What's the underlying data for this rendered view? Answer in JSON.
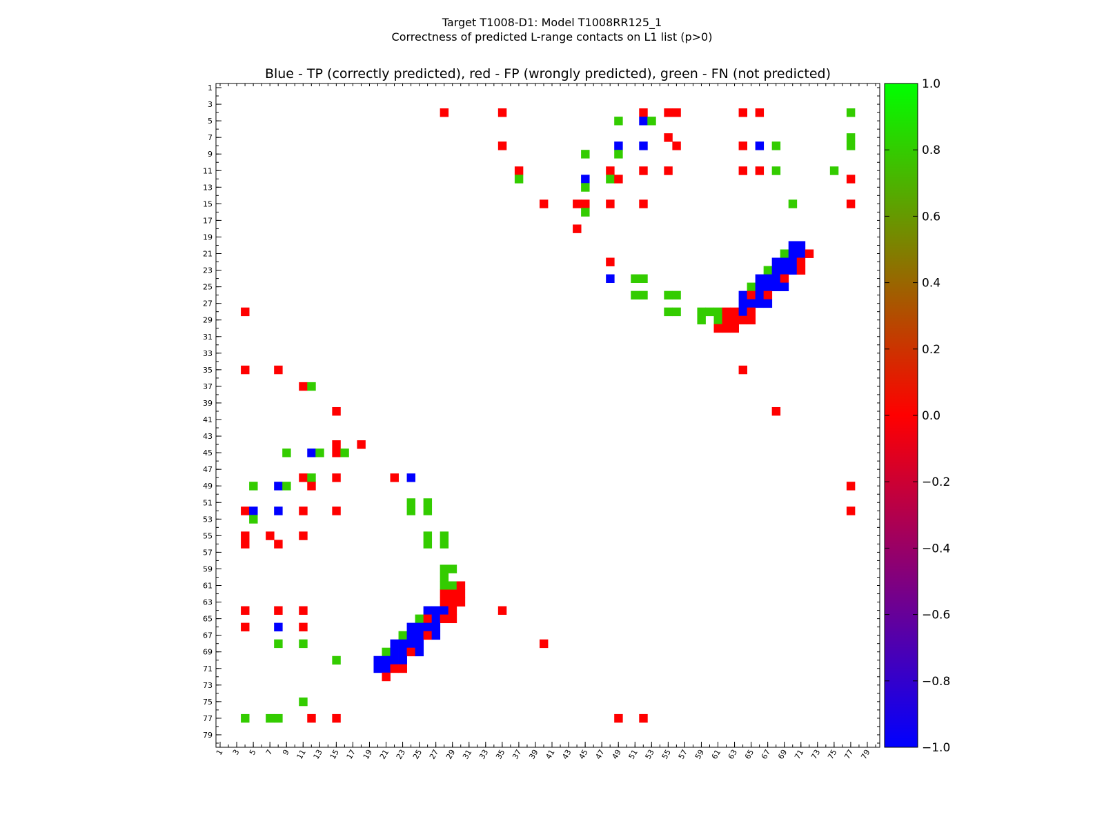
{
  "chart_data": {
    "type": "heatmap",
    "title_line1": "Target T1008-D1: Model T1008RR125_1",
    "title_line2": "Correctness of predicted L-range contacts on L1 list (p>0)",
    "subtitle": "Blue - TP (correctly predicted), red - FP (wrongly predicted), green - FN (not predicted)",
    "xlabel": "",
    "ylabel": "",
    "xlim": [
      1,
      80
    ],
    "ylim": [
      1,
      80
    ],
    "tick_labels": [
      "1",
      "3",
      "5",
      "7",
      "9",
      "11",
      "13",
      "15",
      "17",
      "19",
      "21",
      "23",
      "25",
      "27",
      "29",
      "31",
      "33",
      "35",
      "37",
      "39",
      "41",
      "43",
      "45",
      "47",
      "49",
      "51",
      "53",
      "55",
      "57",
      "59",
      "61",
      "63",
      "65",
      "67",
      "69",
      "71",
      "73",
      "75",
      "77",
      "79"
    ],
    "colorbar": {
      "range": [
        -1.0,
        1.0
      ],
      "ticks": [
        "1.0",
        "0.8",
        "0.6",
        "0.4",
        "0.2",
        "0.0",
        "−0.2",
        "−0.4",
        "−0.6",
        "−0.8",
        "−1.0"
      ],
      "tick_values": [
        1.0,
        0.8,
        0.6,
        0.4,
        0.2,
        0.0,
        -0.2,
        -0.4,
        -0.6,
        -0.8,
        -1.0
      ]
    },
    "value_meaning": {
      "TP": -1.0,
      "FP": 0.0,
      "FN": 1.0
    },
    "colors": {
      "TP": "#0000ff",
      "FP": "#ff0000",
      "FN": "#33cc00"
    },
    "cells": [
      {
        "i": 4,
        "j": 28,
        "t": "FP"
      },
      {
        "i": 4,
        "j": 35,
        "t": "FP"
      },
      {
        "i": 4,
        "j": 52,
        "t": "FP"
      },
      {
        "i": 4,
        "j": 55,
        "t": "FP"
      },
      {
        "i": 4,
        "j": 56,
        "t": "FP"
      },
      {
        "i": 4,
        "j": 64,
        "t": "FP"
      },
      {
        "i": 4,
        "j": 66,
        "t": "FP"
      },
      {
        "i": 4,
        "j": 77,
        "t": "FN"
      },
      {
        "i": 5,
        "j": 49,
        "t": "FN"
      },
      {
        "i": 5,
        "j": 52,
        "t": "TP"
      },
      {
        "i": 5,
        "j": 53,
        "t": "FN"
      },
      {
        "i": 7,
        "j": 55,
        "t": "FP"
      },
      {
        "i": 7,
        "j": 77,
        "t": "FN"
      },
      {
        "i": 8,
        "j": 35,
        "t": "FP"
      },
      {
        "i": 8,
        "j": 49,
        "t": "TP"
      },
      {
        "i": 8,
        "j": 52,
        "t": "TP"
      },
      {
        "i": 8,
        "j": 56,
        "t": "FP"
      },
      {
        "i": 8,
        "j": 64,
        "t": "FP"
      },
      {
        "i": 8,
        "j": 66,
        "t": "TP"
      },
      {
        "i": 8,
        "j": 68,
        "t": "FN"
      },
      {
        "i": 8,
        "j": 77,
        "t": "FN"
      },
      {
        "i": 9,
        "j": 45,
        "t": "FN"
      },
      {
        "i": 9,
        "j": 49,
        "t": "FN"
      },
      {
        "i": 11,
        "j": 37,
        "t": "FP"
      },
      {
        "i": 11,
        "j": 48,
        "t": "FP"
      },
      {
        "i": 11,
        "j": 52,
        "t": "FP"
      },
      {
        "i": 11,
        "j": 55,
        "t": "FP"
      },
      {
        "i": 11,
        "j": 64,
        "t": "FP"
      },
      {
        "i": 11,
        "j": 66,
        "t": "FP"
      },
      {
        "i": 11,
        "j": 68,
        "t": "FN"
      },
      {
        "i": 11,
        "j": 75,
        "t": "FN"
      },
      {
        "i": 12,
        "j": 37,
        "t": "FN"
      },
      {
        "i": 12,
        "j": 45,
        "t": "TP"
      },
      {
        "i": 12,
        "j": 48,
        "t": "FN"
      },
      {
        "i": 12,
        "j": 49,
        "t": "FP"
      },
      {
        "i": 12,
        "j": 77,
        "t": "FP"
      },
      {
        "i": 13,
        "j": 45,
        "t": "FN"
      },
      {
        "i": 15,
        "j": 40,
        "t": "FP"
      },
      {
        "i": 15,
        "j": 44,
        "t": "FP"
      },
      {
        "i": 15,
        "j": 45,
        "t": "FP"
      },
      {
        "i": 15,
        "j": 48,
        "t": "FP"
      },
      {
        "i": 15,
        "j": 52,
        "t": "FP"
      },
      {
        "i": 15,
        "j": 70,
        "t": "FN"
      },
      {
        "i": 15,
        "j": 77,
        "t": "FP"
      },
      {
        "i": 16,
        "j": 45,
        "t": "FN"
      },
      {
        "i": 18,
        "j": 44,
        "t": "FP"
      },
      {
        "i": 20,
        "j": 70,
        "t": "TP"
      },
      {
        "i": 20,
        "j": 71,
        "t": "TP"
      },
      {
        "i": 21,
        "j": 69,
        "t": "FN"
      },
      {
        "i": 21,
        "j": 70,
        "t": "TP"
      },
      {
        "i": 21,
        "j": 71,
        "t": "TP"
      },
      {
        "i": 21,
        "j": 72,
        "t": "FP"
      },
      {
        "i": 22,
        "j": 48,
        "t": "FP"
      },
      {
        "i": 22,
        "j": 68,
        "t": "TP"
      },
      {
        "i": 22,
        "j": 69,
        "t": "TP"
      },
      {
        "i": 22,
        "j": 70,
        "t": "TP"
      },
      {
        "i": 22,
        "j": 71,
        "t": "FP"
      },
      {
        "i": 23,
        "j": 67,
        "t": "FN"
      },
      {
        "i": 23,
        "j": 68,
        "t": "TP"
      },
      {
        "i": 23,
        "j": 69,
        "t": "TP"
      },
      {
        "i": 23,
        "j": 70,
        "t": "TP"
      },
      {
        "i": 23,
        "j": 71,
        "t": "FP"
      },
      {
        "i": 24,
        "j": 48,
        "t": "TP"
      },
      {
        "i": 24,
        "j": 51,
        "t": "FN"
      },
      {
        "i": 24,
        "j": 52,
        "t": "FN"
      },
      {
        "i": 24,
        "j": 66,
        "t": "TP"
      },
      {
        "i": 24,
        "j": 67,
        "t": "TP"
      },
      {
        "i": 24,
        "j": 68,
        "t": "TP"
      },
      {
        "i": 24,
        "j": 69,
        "t": "FP"
      },
      {
        "i": 25,
        "j": 65,
        "t": "FN"
      },
      {
        "i": 25,
        "j": 66,
        "t": "TP"
      },
      {
        "i": 25,
        "j": 67,
        "t": "TP"
      },
      {
        "i": 25,
        "j": 68,
        "t": "TP"
      },
      {
        "i": 25,
        "j": 69,
        "t": "TP"
      },
      {
        "i": 26,
        "j": 51,
        "t": "FN"
      },
      {
        "i": 26,
        "j": 52,
        "t": "FN"
      },
      {
        "i": 26,
        "j": 55,
        "t": "FN"
      },
      {
        "i": 26,
        "j": 56,
        "t": "FN"
      },
      {
        "i": 26,
        "j": 64,
        "t": "TP"
      },
      {
        "i": 26,
        "j": 65,
        "t": "FP"
      },
      {
        "i": 26,
        "j": 66,
        "t": "TP"
      },
      {
        "i": 26,
        "j": 67,
        "t": "FP"
      },
      {
        "i": 27,
        "j": 64,
        "t": "TP"
      },
      {
        "i": 27,
        "j": 65,
        "t": "TP"
      },
      {
        "i": 27,
        "j": 66,
        "t": "TP"
      },
      {
        "i": 27,
        "j": 67,
        "t": "TP"
      },
      {
        "i": 28,
        "j": 4,
        "t": "FP"
      },
      {
        "i": 28,
        "j": 55,
        "t": "FN"
      },
      {
        "i": 28,
        "j": 56,
        "t": "FN"
      },
      {
        "i": 28,
        "j": 59,
        "t": "FN"
      },
      {
        "i": 28,
        "j": 60,
        "t": "FN"
      },
      {
        "i": 28,
        "j": 61,
        "t": "FN"
      },
      {
        "i": 28,
        "j": 62,
        "t": "FP"
      },
      {
        "i": 28,
        "j": 63,
        "t": "FP"
      },
      {
        "i": 28,
        "j": 64,
        "t": "TP"
      },
      {
        "i": 28,
        "j": 65,
        "t": "FP"
      },
      {
        "i": 29,
        "j": 59,
        "t": "FN"
      },
      {
        "i": 29,
        "j": 61,
        "t": "FN"
      },
      {
        "i": 29,
        "j": 62,
        "t": "FP"
      },
      {
        "i": 29,
        "j": 63,
        "t": "FP"
      },
      {
        "i": 29,
        "j": 64,
        "t": "FP"
      },
      {
        "i": 29,
        "j": 65,
        "t": "FP"
      },
      {
        "i": 30,
        "j": 61,
        "t": "FP"
      },
      {
        "i": 30,
        "j": 62,
        "t": "FP"
      },
      {
        "i": 30,
        "j": 63,
        "t": "FP"
      },
      {
        "i": 35,
        "j": 4,
        "t": "FP"
      },
      {
        "i": 35,
        "j": 8,
        "t": "FP"
      },
      {
        "i": 35,
        "j": 64,
        "t": "FP"
      },
      {
        "i": 37,
        "j": 11,
        "t": "FP"
      },
      {
        "i": 37,
        "j": 12,
        "t": "FN"
      },
      {
        "i": 40,
        "j": 15,
        "t": "FP"
      },
      {
        "i": 40,
        "j": 68,
        "t": "FP"
      },
      {
        "i": 44,
        "j": 15,
        "t": "FP"
      },
      {
        "i": 44,
        "j": 18,
        "t": "FP"
      },
      {
        "i": 45,
        "j": 9,
        "t": "FN"
      },
      {
        "i": 45,
        "j": 12,
        "t": "TP"
      },
      {
        "i": 45,
        "j": 13,
        "t": "FN"
      },
      {
        "i": 45,
        "j": 15,
        "t": "FP"
      },
      {
        "i": 45,
        "j": 16,
        "t": "FN"
      },
      {
        "i": 48,
        "j": 11,
        "t": "FP"
      },
      {
        "i": 48,
        "j": 12,
        "t": "FN"
      },
      {
        "i": 48,
        "j": 15,
        "t": "FP"
      },
      {
        "i": 48,
        "j": 22,
        "t": "FP"
      },
      {
        "i": 48,
        "j": 24,
        "t": "TP"
      },
      {
        "i": 49,
        "j": 5,
        "t": "FN"
      },
      {
        "i": 49,
        "j": 8,
        "t": "TP"
      },
      {
        "i": 49,
        "j": 9,
        "t": "FN"
      },
      {
        "i": 49,
        "j": 12,
        "t": "FP"
      },
      {
        "i": 49,
        "j": 77,
        "t": "FP"
      },
      {
        "i": 51,
        "j": 24,
        "t": "FN"
      },
      {
        "i": 51,
        "j": 26,
        "t": "FN"
      },
      {
        "i": 52,
        "j": 4,
        "t": "FP"
      },
      {
        "i": 52,
        "j": 5,
        "t": "TP"
      },
      {
        "i": 52,
        "j": 8,
        "t": "TP"
      },
      {
        "i": 52,
        "j": 11,
        "t": "FP"
      },
      {
        "i": 52,
        "j": 15,
        "t": "FP"
      },
      {
        "i": 52,
        "j": 24,
        "t": "FN"
      },
      {
        "i": 52,
        "j": 26,
        "t": "FN"
      },
      {
        "i": 52,
        "j": 77,
        "t": "FP"
      },
      {
        "i": 53,
        "j": 5,
        "t": "FN"
      },
      {
        "i": 55,
        "j": 4,
        "t": "FP"
      },
      {
        "i": 55,
        "j": 7,
        "t": "FP"
      },
      {
        "i": 55,
        "j": 11,
        "t": "FP"
      },
      {
        "i": 55,
        "j": 26,
        "t": "FN"
      },
      {
        "i": 55,
        "j": 28,
        "t": "FN"
      },
      {
        "i": 56,
        "j": 4,
        "t": "FP"
      },
      {
        "i": 56,
        "j": 8,
        "t": "FP"
      },
      {
        "i": 56,
        "j": 26,
        "t": "FN"
      },
      {
        "i": 56,
        "j": 28,
        "t": "FN"
      },
      {
        "i": 59,
        "j": 28,
        "t": "FN"
      },
      {
        "i": 59,
        "j": 29,
        "t": "FN"
      },
      {
        "i": 60,
        "j": 28,
        "t": "FN"
      },
      {
        "i": 61,
        "j": 28,
        "t": "FN"
      },
      {
        "i": 61,
        "j": 29,
        "t": "FN"
      },
      {
        "i": 61,
        "j": 30,
        "t": "FP"
      },
      {
        "i": 62,
        "j": 28,
        "t": "FP"
      },
      {
        "i": 62,
        "j": 29,
        "t": "FP"
      },
      {
        "i": 62,
        "j": 30,
        "t": "FP"
      },
      {
        "i": 63,
        "j": 28,
        "t": "FP"
      },
      {
        "i": 63,
        "j": 29,
        "t": "FP"
      },
      {
        "i": 63,
        "j": 30,
        "t": "FP"
      },
      {
        "i": 64,
        "j": 4,
        "t": "FP"
      },
      {
        "i": 64,
        "j": 8,
        "t": "FP"
      },
      {
        "i": 64,
        "j": 11,
        "t": "FP"
      },
      {
        "i": 64,
        "j": 26,
        "t": "TP"
      },
      {
        "i": 64,
        "j": 27,
        "t": "TP"
      },
      {
        "i": 64,
        "j": 28,
        "t": "TP"
      },
      {
        "i": 64,
        "j": 29,
        "t": "FP"
      },
      {
        "i": 64,
        "j": 35,
        "t": "FP"
      },
      {
        "i": 65,
        "j": 25,
        "t": "FN"
      },
      {
        "i": 65,
        "j": 26,
        "t": "FP"
      },
      {
        "i": 65,
        "j": 27,
        "t": "TP"
      },
      {
        "i": 65,
        "j": 28,
        "t": "FP"
      },
      {
        "i": 65,
        "j": 29,
        "t": "FP"
      },
      {
        "i": 66,
        "j": 4,
        "t": "FP"
      },
      {
        "i": 66,
        "j": 8,
        "t": "TP"
      },
      {
        "i": 66,
        "j": 11,
        "t": "FP"
      },
      {
        "i": 66,
        "j": 24,
        "t": "TP"
      },
      {
        "i": 66,
        "j": 25,
        "t": "TP"
      },
      {
        "i": 66,
        "j": 26,
        "t": "TP"
      },
      {
        "i": 66,
        "j": 27,
        "t": "TP"
      },
      {
        "i": 67,
        "j": 23,
        "t": "FN"
      },
      {
        "i": 67,
        "j": 24,
        "t": "TP"
      },
      {
        "i": 67,
        "j": 25,
        "t": "TP"
      },
      {
        "i": 67,
        "j": 26,
        "t": "FP"
      },
      {
        "i": 67,
        "j": 27,
        "t": "TP"
      },
      {
        "i": 68,
        "j": 8,
        "t": "FN"
      },
      {
        "i": 68,
        "j": 11,
        "t": "FN"
      },
      {
        "i": 68,
        "j": 22,
        "t": "TP"
      },
      {
        "i": 68,
        "j": 23,
        "t": "TP"
      },
      {
        "i": 68,
        "j": 24,
        "t": "TP"
      },
      {
        "i": 68,
        "j": 25,
        "t": "TP"
      },
      {
        "i": 68,
        "j": 40,
        "t": "FP"
      },
      {
        "i": 69,
        "j": 21,
        "t": "FN"
      },
      {
        "i": 69,
        "j": 22,
        "t": "TP"
      },
      {
        "i": 69,
        "j": 23,
        "t": "TP"
      },
      {
        "i": 69,
        "j": 24,
        "t": "FP"
      },
      {
        "i": 69,
        "j": 25,
        "t": "TP"
      },
      {
        "i": 70,
        "j": 15,
        "t": "FN"
      },
      {
        "i": 70,
        "j": 20,
        "t": "TP"
      },
      {
        "i": 70,
        "j": 21,
        "t": "TP"
      },
      {
        "i": 70,
        "j": 22,
        "t": "TP"
      },
      {
        "i": 70,
        "j": 23,
        "t": "TP"
      },
      {
        "i": 71,
        "j": 20,
        "t": "TP"
      },
      {
        "i": 71,
        "j": 21,
        "t": "TP"
      },
      {
        "i": 71,
        "j": 22,
        "t": "FP"
      },
      {
        "i": 71,
        "j": 23,
        "t": "FP"
      },
      {
        "i": 72,
        "j": 21,
        "t": "FP"
      },
      {
        "i": 75,
        "j": 11,
        "t": "FN"
      },
      {
        "i": 77,
        "j": 4,
        "t": "FN"
      },
      {
        "i": 77,
        "j": 7,
        "t": "FN"
      },
      {
        "i": 77,
        "j": 8,
        "t": "FN"
      },
      {
        "i": 77,
        "j": 12,
        "t": "FP"
      },
      {
        "i": 77,
        "j": 15,
        "t": "FP"
      },
      {
        "i": 77,
        "j": 49,
        "t": "FP"
      },
      {
        "i": 77,
        "j": 52,
        "t": "FP"
      }
    ]
  }
}
